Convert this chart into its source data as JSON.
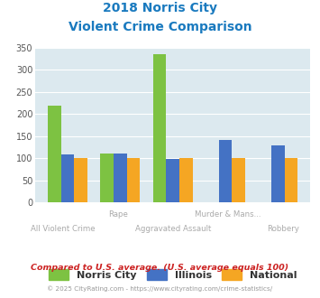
{
  "title_line1": "2018 Norris City",
  "title_line2": "Violent Crime Comparison",
  "categories": [
    "All Violent Crime",
    "Rape",
    "Aggravated Assault",
    "Murder & Mans...",
    "Robbery"
  ],
  "categories_row1": [
    "",
    "Rape",
    "",
    "Murder & Mans...",
    ""
  ],
  "categories_row2": [
    "All Violent Crime",
    "",
    "Aggravated Assault",
    "",
    "Robbery"
  ],
  "norris_city": [
    220,
    110,
    335,
    0,
    0
  ],
  "illinois": [
    108,
    110,
    98,
    142,
    130
  ],
  "national": [
    100,
    100,
    100,
    100,
    100
  ],
  "color_norris": "#7dc242",
  "color_illinois": "#4472c4",
  "color_national": "#f5a623",
  "ylim": [
    0,
    350
  ],
  "yticks": [
    0,
    50,
    100,
    150,
    200,
    250,
    300,
    350
  ],
  "bg_color": "#dce9ef",
  "title_color": "#1a7abf",
  "xtick_color": "#aaaaaa",
  "footer1": "Compared to U.S. average. (U.S. average equals 100)",
  "footer2": "© 2025 CityRating.com - https://www.cityrating.com/crime-statistics/",
  "footer1_color": "#cc2222",
  "footer2_color": "#999999",
  "legend_labels": [
    "Norris City",
    "Illinois",
    "National"
  ]
}
